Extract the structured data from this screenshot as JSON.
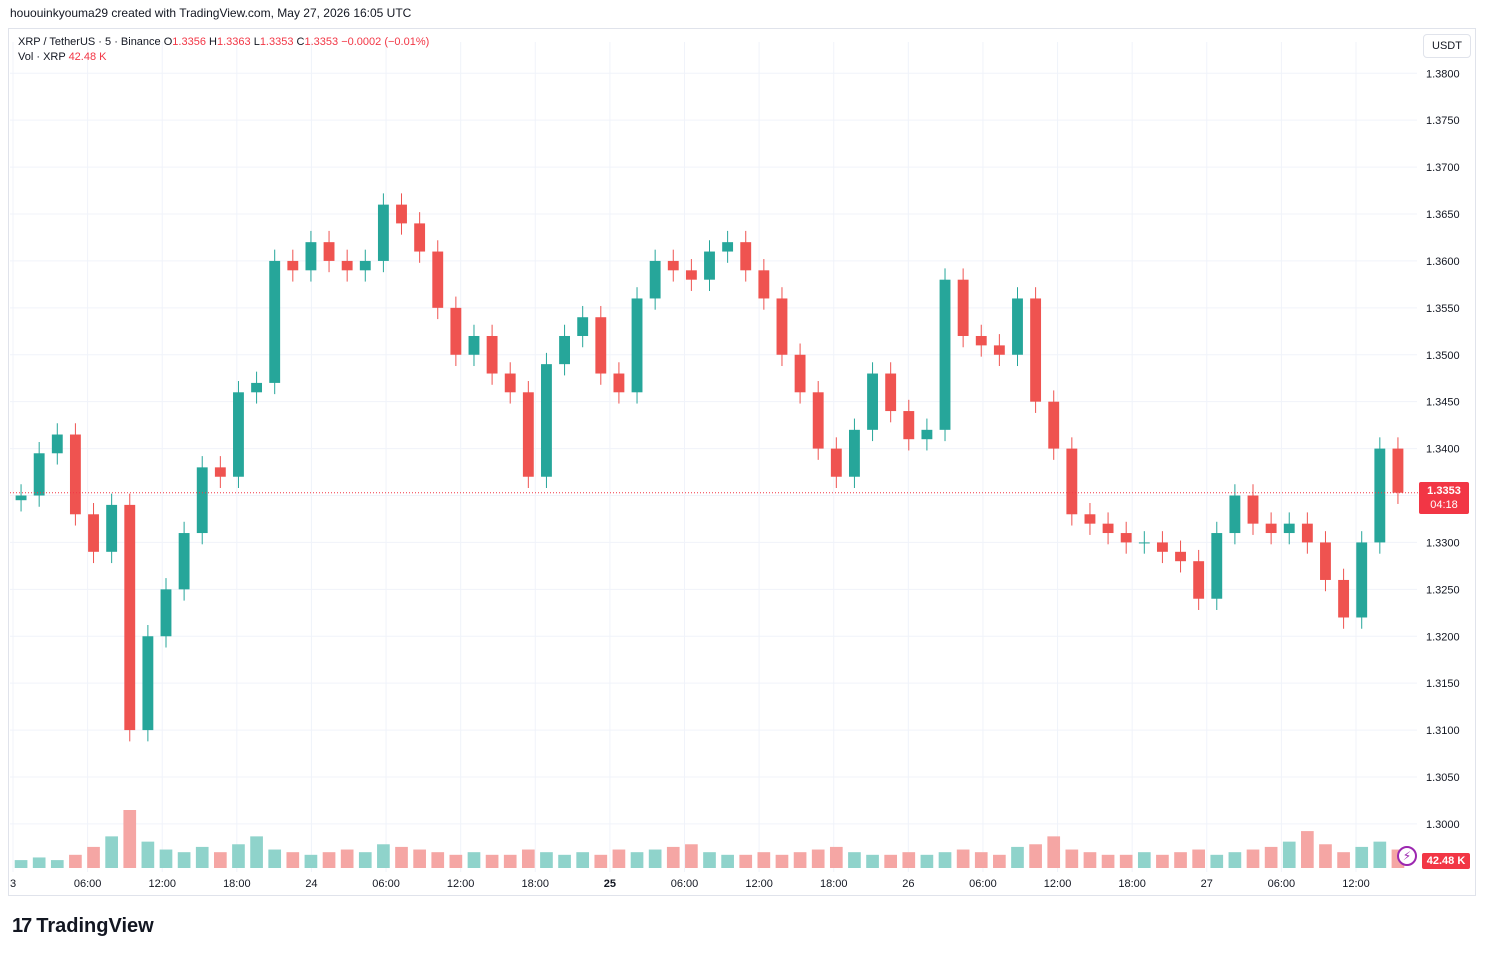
{
  "header": {
    "caption": "hououinkyouma29 created with TradingView.com, May 27, 2026 16:05 UTC"
  },
  "legend": {
    "symbol": "XRP / TetherUS · 5 · Binance",
    "open_label": "O",
    "open": "1.3356",
    "high_label": "H",
    "high": "1.3363",
    "low_label": "L",
    "low": "1.3353",
    "close_label": "C",
    "close": "1.3353",
    "change": "−0.0002 (−0.01%)",
    "vol_label": "Vol · XRP",
    "vol_value": "42.48 K"
  },
  "currency_button": "USDT",
  "last_price": {
    "price": "1.3353",
    "countdown": "04:18"
  },
  "volume_tag": "42.48 K",
  "brand": {
    "logo": "17",
    "name": "TradingView"
  },
  "colors": {
    "up": "#26a69a",
    "down": "#ef5350",
    "up_vol": "#8fd3cb",
    "down_vol": "#f5a6a4",
    "grid": "#f0f3fa",
    "price_line": "#f23645"
  },
  "icons": [
    "bolt-icon",
    "tradingview-logo-icon"
  ],
  "chart_data": {
    "type": "line",
    "title": "XRP / TetherUS · 5 · Binance",
    "y_ticks": [
      "1.3800",
      "1.3750",
      "1.3700",
      "1.3650",
      "1.3600",
      "1.3550",
      "1.3500",
      "1.3450",
      "1.3400",
      "1.3350",
      "1.3300",
      "1.3250",
      "1.3200",
      "1.3150",
      "1.3100",
      "1.3050",
      "1.3000"
    ],
    "ylim": [
      1.2985,
      1.3812
    ],
    "x_ticks": [
      {
        "label": "3",
        "bold": false
      },
      {
        "label": "06:00",
        "bold": false
      },
      {
        "label": "12:00",
        "bold": false
      },
      {
        "label": "18:00",
        "bold": false
      },
      {
        "label": "24",
        "bold": false
      },
      {
        "label": "06:00",
        "bold": false
      },
      {
        "label": "12:00",
        "bold": false
      },
      {
        "label": "18:00",
        "bold": false
      },
      {
        "label": "25",
        "bold": true
      },
      {
        "label": "06:00",
        "bold": false
      },
      {
        "label": "12:00",
        "bold": false
      },
      {
        "label": "18:00",
        "bold": false
      },
      {
        "label": "26",
        "bold": false
      },
      {
        "label": "06:00",
        "bold": false
      },
      {
        "label": "12:00",
        "bold": false
      },
      {
        "label": "18:00",
        "bold": false
      },
      {
        "label": "27",
        "bold": false
      },
      {
        "label": "06:00",
        "bold": false
      },
      {
        "label": "12:00",
        "bold": false
      }
    ],
    "x": [
      "23 00:00",
      "23 02:00",
      "23 04:00",
      "23 06:00",
      "23 07:00",
      "23 08:00",
      "23 09:00",
      "23 11:00",
      "23 13:00",
      "23 15:00",
      "23 17:00",
      "23 19:00",
      "23 20:30",
      "23 21:00",
      "23 23:00",
      "24 01:00",
      "24 03:00",
      "24 05:00",
      "24 07:00",
      "24 09:00",
      "24 10:30",
      "24 12:00",
      "24 13:00",
      "24 14:00",
      "24 16:00",
      "24 18:00",
      "24 20:00",
      "24 22:00",
      "25 00:00",
      "25 02:00",
      "25 03:00",
      "25 04:00",
      "25 05:00",
      "25 07:00",
      "25 09:00",
      "25 11:00",
      "25 13:00",
      "25 15:00",
      "25 17:00",
      "25 19:00",
      "25 21:00",
      "25 22:00",
      "26 00:00",
      "26 01:00",
      "26 02:00",
      "26 03:00",
      "26 04:00",
      "26 05:00",
      "26 06:00",
      "26 08:00",
      "26 10:00",
      "26 11:00",
      "26 12:00",
      "26 13:00",
      "26 14:00",
      "26 15:00",
      "26 16:00",
      "26 17:00",
      "26 18:00",
      "26 19:00",
      "26 21:00",
      "26 23:00",
      "27 01:00",
      "27 02:00",
      "27 03:00",
      "27 04:00",
      "27 06:00",
      "27 07:00",
      "27 08:00",
      "27 09:00",
      "27 10:00",
      "27 11:00",
      "27 12:00",
      "27 13:00",
      "27 14:00",
      "27 15:00",
      "27 16:00"
    ],
    "series": [
      {
        "values": [
          1.335,
          1.3395,
          1.3415,
          1.333,
          1.329,
          1.334,
          1.31,
          1.32,
          1.325,
          1.331,
          1.338,
          1.337,
          1.346,
          1.347,
          1.36,
          1.359,
          1.362,
          1.36,
          1.359,
          1.36,
          1.366,
          1.364,
          1.361,
          1.355,
          1.35,
          1.352,
          1.348,
          1.346,
          1.337,
          1.349,
          1.352,
          1.354,
          1.348,
          1.346,
          1.356,
          1.36,
          1.359,
          1.358,
          1.361,
          1.362,
          1.359,
          1.356,
          1.35,
          1.346,
          1.34,
          1.337,
          1.342,
          1.348,
          1.344,
          1.341,
          1.342,
          1.358,
          1.352,
          1.351,
          1.35,
          1.356,
          1.345,
          1.34,
          1.333,
          1.332,
          1.331,
          1.33,
          1.33,
          1.329,
          1.328,
          1.324,
          1.331,
          1.335,
          1.332,
          1.331,
          1.332,
          1.33,
          1.326,
          1.322,
          1.33,
          1.34,
          1.3353
        ]
      }
    ],
    "volume": [
      3,
      4,
      3,
      5,
      8,
      12,
      22,
      10,
      7,
      6,
      8,
      6,
      9,
      12,
      7,
      6,
      5,
      6,
      7,
      6,
      9,
      8,
      7,
      6,
      5,
      6,
      5,
      5,
      7,
      6,
      5,
      6,
      5,
      7,
      6,
      7,
      8,
      9,
      6,
      5,
      5,
      6,
      5,
      6,
      7,
      8,
      6,
      5,
      5,
      6,
      5,
      6,
      7,
      6,
      5,
      8,
      9,
      12,
      7,
      6,
      5,
      5,
      6,
      5,
      6,
      7,
      5,
      6,
      7,
      8,
      10,
      14,
      9,
      6,
      8,
      10,
      7
    ],
    "annotations": []
  }
}
